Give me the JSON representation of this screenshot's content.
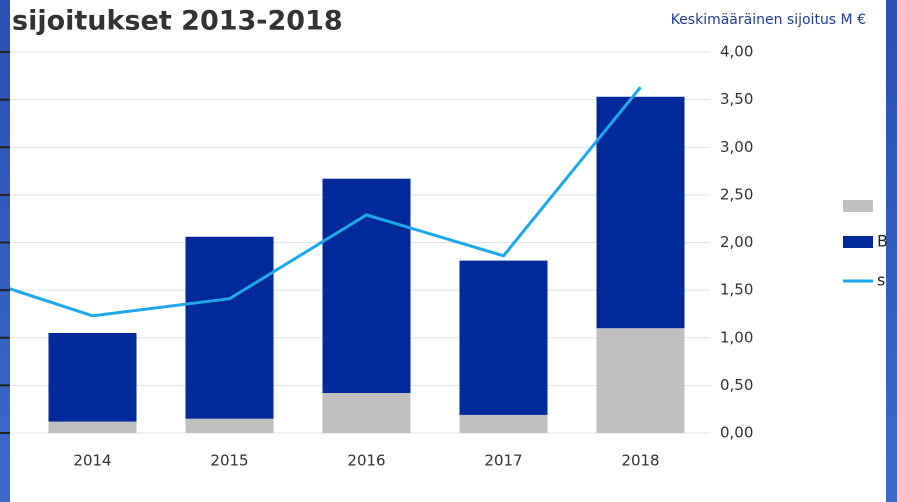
{
  "chart_data": {
    "type": "bar",
    "title": "sijoitukset 2013-2018",
    "y_axis_label": "Keskimääräinen sijoitus M €",
    "categories": [
      null,
      "2014",
      "2015",
      "2016",
      "2017",
      "2018"
    ],
    "series": [
      {
        "color": "#c0c0c0",
        "values": [
          null,
          0.12,
          0.15,
          0.42,
          0.19,
          1.1
        ]
      },
      {
        "name": "B",
        "color": "#00299a",
        "values": [
          null,
          0.93,
          1.91,
          2.25,
          1.62,
          2.43
        ]
      },
      {
        "name": "s",
        "type": "line",
        "color": "#1ea7ea",
        "values": [
          1.7,
          1.23,
          1.41,
          2.29,
          1.86,
          3.63
        ]
      }
    ],
    "ylim": [
      0,
      4
    ],
    "yticks": [
      {
        "value": 0,
        "label": "0,00"
      },
      {
        "value": 0.5,
        "label": "0,50"
      },
      {
        "value": 1,
        "label": "1,00"
      },
      {
        "value": 1.5,
        "label": "1,50"
      },
      {
        "value": 2,
        "label": "2,00"
      },
      {
        "value": 2.5,
        "label": "2,50"
      },
      {
        "value": 3,
        "label": "3,00"
      },
      {
        "value": 3.5,
        "label": "3,50"
      },
      {
        "value": 4,
        "label": "4,00"
      }
    ],
    "grid": true
  }
}
